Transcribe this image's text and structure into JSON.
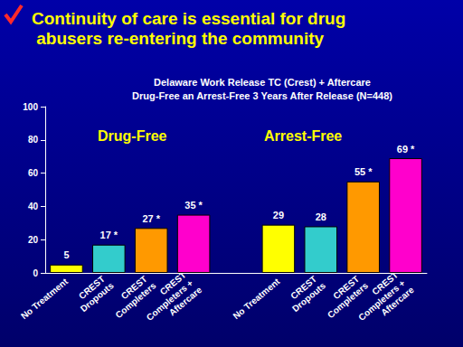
{
  "chart_data": {
    "type": "bar",
    "title": "Continuity of care is essential for drug abusers re-entering the community",
    "subtitle": "Delaware Work Release TC (Crest) + Aftercare\nDrug-Free an Arrest-Free 3 Years After Release (N=448)",
    "annotations": [
      "Drug-Free",
      "Arrest-Free"
    ],
    "categories": [
      "No Treatment",
      "CREST Dropouts",
      "CREST Completers",
      "CREST Completers + Aftercare",
      null,
      "No Treatment",
      "CREST Dropouts",
      "CREST Completers",
      "CREST Completers + Aftercare"
    ],
    "values": [
      5,
      17,
      27,
      35,
      null,
      29,
      28,
      55,
      69
    ],
    "value_labels": [
      "5",
      "17 *",
      "27 *",
      "35 *",
      null,
      "29",
      "28",
      "55 *",
      "69 *"
    ],
    "colors": [
      "#ffff00",
      "#33cccc",
      "#ff9900",
      "#ff00cc",
      null,
      "#ffff00",
      "#33cccc",
      "#ff9900",
      "#ff00cc"
    ],
    "ylim": [
      0,
      100
    ],
    "yticks": [
      0,
      20,
      40,
      60,
      80,
      100
    ],
    "grid": false,
    "data_labels": true
  }
}
